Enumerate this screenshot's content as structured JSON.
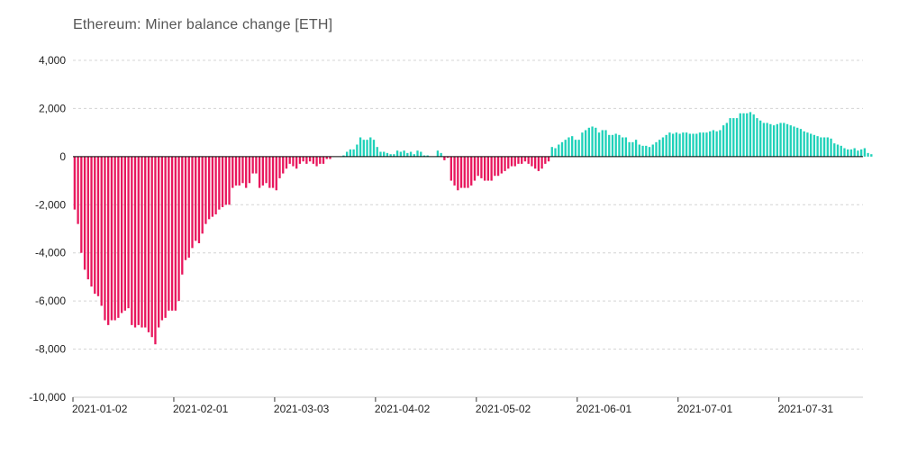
{
  "chart_data": {
    "type": "bar",
    "title": "Ethereum: Miner balance change [ETH]",
    "xlabel": "",
    "ylabel": "",
    "x_start": "2021-01-02",
    "x_end": "2021-08-24",
    "x_ticks": [
      "2021-01-02",
      "2021-02-01",
      "2021-03-03",
      "2021-04-02",
      "2021-05-02",
      "2021-06-01",
      "2021-07-01",
      "2021-07-31"
    ],
    "ylim": [
      -10000,
      4000
    ],
    "y_ticks": [
      4000,
      2000,
      0,
      -2000,
      -4000,
      -6000,
      -8000,
      -10000
    ],
    "y_tick_labels": [
      "4,000",
      "2,000",
      "0",
      "-2,000",
      "-4,000",
      "-6,000",
      "-8,000",
      "-10,000"
    ],
    "grid": true,
    "legend": "none",
    "colors": {
      "positive": "#1fd1b9",
      "negative": "#e8175d",
      "grid": "#d4d4d4",
      "zero_line": "#000000"
    },
    "values": [
      -2200,
      -2800,
      -4000,
      -4700,
      -5100,
      -5400,
      -5700,
      -5800,
      -6200,
      -6800,
      -7000,
      -6800,
      -6800,
      -6700,
      -6500,
      -6400,
      -6300,
      -7000,
      -7100,
      -7000,
      -7100,
      -7100,
      -7300,
      -7500,
      -7800,
      -7100,
      -6800,
      -6700,
      -6400,
      -6400,
      -6400,
      -6000,
      -4900,
      -4300,
      -4200,
      -3800,
      -3500,
      -3600,
      -3200,
      -2800,
      -2600,
      -2500,
      -2400,
      -2200,
      -2100,
      -2000,
      -2000,
      -1300,
      -1200,
      -1200,
      -1100,
      -1300,
      -1100,
      -700,
      -700,
      -1300,
      -1200,
      -1100,
      -1300,
      -1300,
      -1400,
      -900,
      -700,
      -500,
      -300,
      -400,
      -500,
      -300,
      -200,
      -300,
      -200,
      -300,
      -400,
      -300,
      -300,
      -100,
      -100,
      0,
      0,
      0,
      50,
      200,
      300,
      300,
      500,
      800,
      700,
      700,
      800,
      700,
      400,
      200,
      200,
      150,
      100,
      100,
      250,
      200,
      250,
      150,
      200,
      100,
      250,
      200,
      50,
      50,
      0,
      0,
      250,
      150,
      -150,
      -50,
      -1000,
      -1200,
      -1400,
      -1300,
      -1300,
      -1300,
      -1200,
      -1000,
      -800,
      -900,
      -1000,
      -1000,
      -1000,
      -800,
      -800,
      -700,
      -600,
      -500,
      -400,
      -400,
      -300,
      -300,
      -200,
      -300,
      -400,
      -500,
      -600,
      -500,
      -300,
      -200,
      400,
      350,
      500,
      600,
      700,
      800,
      850,
      700,
      700,
      1000,
      1100,
      1200,
      1250,
      1200,
      1000,
      1100,
      1100,
      900,
      900,
      950,
      900,
      800,
      800,
      600,
      600,
      700,
      500,
      450,
      450,
      400,
      500,
      600,
      700,
      800,
      900,
      1000,
      950,
      1000,
      950,
      1000,
      1000,
      950,
      950,
      950,
      1000,
      1000,
      1000,
      1050,
      1100,
      1050,
      1100,
      1300,
      1400,
      1600,
      1600,
      1600,
      1800,
      1800,
      1800,
      1850,
      1750,
      1600,
      1500,
      1400,
      1400,
      1350,
      1300,
      1350,
      1400,
      1400,
      1350,
      1300,
      1250,
      1200,
      1150,
      1050,
      1000,
      950,
      900,
      850,
      800,
      800,
      800,
      750,
      550,
      500,
      450,
      350,
      300,
      300,
      350,
      250,
      300,
      350,
      150,
      100
    ]
  }
}
